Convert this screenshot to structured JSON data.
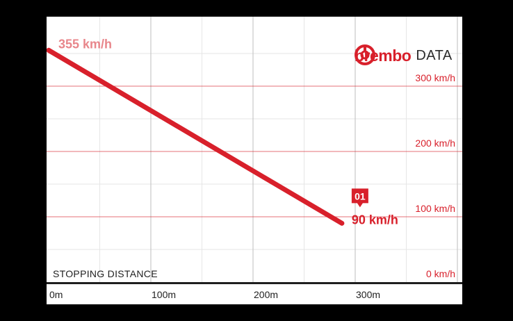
{
  "header": {
    "brand_name": "brembo",
    "brand_suffix": "DATA"
  },
  "colors": {
    "accent": "#d8202b",
    "accent_light": "#e8868b",
    "grid": "#e6e6e6",
    "text_dark": "#1f1f1f"
  },
  "chart_data": {
    "type": "line",
    "xlabel": "STOPPING DISTANCE",
    "ylabel": "",
    "xlim": [
      0,
      400
    ],
    "ylim": [
      0,
      400
    ],
    "x_ticks": [
      {
        "value": 0,
        "label": "0m"
      },
      {
        "value": 100,
        "label": "100m"
      },
      {
        "value": 200,
        "label": "200m"
      },
      {
        "value": 300,
        "label": "300m"
      }
    ],
    "y_ticks": [
      {
        "value": 0,
        "label": "0 km/h"
      },
      {
        "value": 100,
        "label": "100 km/h"
      },
      {
        "value": 200,
        "label": "200 km/h"
      },
      {
        "value": 300,
        "label": "300 km/h"
      }
    ],
    "grid": true,
    "series": [
      {
        "x": [
          0,
          287
        ],
        "y": [
          355,
          90
        ]
      }
    ],
    "annotations": [
      {
        "text": "355 km/h",
        "x": 0,
        "y": 355
      },
      {
        "text": "90 km/h",
        "x": 287,
        "y": 90,
        "badge": "01"
      }
    ]
  }
}
